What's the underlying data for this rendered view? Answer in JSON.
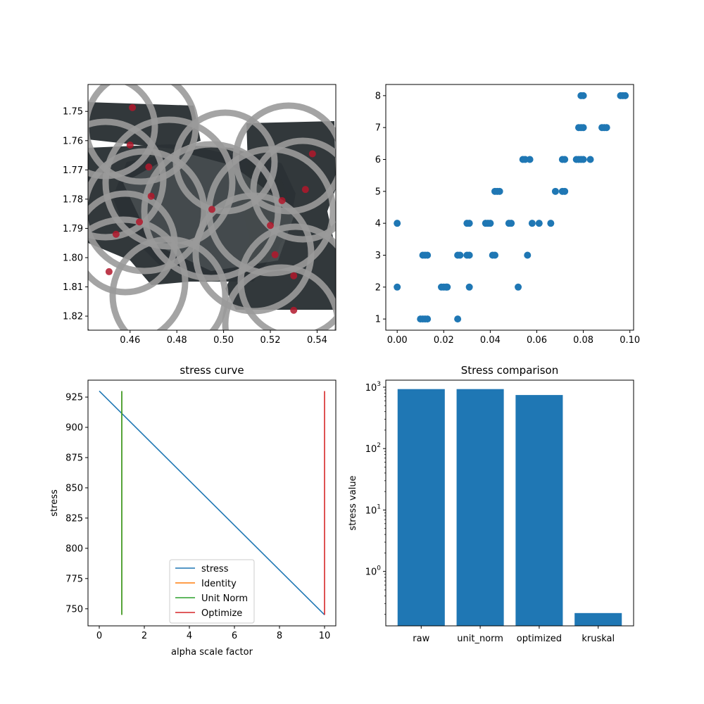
{
  "chart_data": [
    {
      "panel": "top-left",
      "type": "scatter",
      "title": "",
      "xlabel": "",
      "ylabel": "",
      "xlim": [
        0.442,
        0.548
      ],
      "ylim": [
        1.8248,
        1.7408
      ],
      "y_inverted": true,
      "xticks": [
        0.46,
        0.48,
        0.5,
        0.52,
        0.54
      ],
      "xtick_labels": [
        "0.46",
        "0.48",
        "0.50",
        "0.52",
        "0.54"
      ],
      "yticks": [
        1.75,
        1.76,
        1.77,
        1.78,
        1.79,
        1.8,
        1.81,
        1.82
      ],
      "ytick_labels": [
        "1.75",
        "1.76",
        "1.77",
        "1.78",
        "1.79",
        "1.80",
        "1.81",
        "1.82"
      ],
      "points": [
        {
          "x": 0.461,
          "y": 1.7487
        },
        {
          "x": 0.46,
          "y": 1.7615
        },
        {
          "x": 0.468,
          "y": 1.769
        },
        {
          "x": 0.469,
          "y": 1.779
        },
        {
          "x": 0.464,
          "y": 1.7878
        },
        {
          "x": 0.454,
          "y": 1.792
        },
        {
          "x": 0.451,
          "y": 1.8048
        },
        {
          "x": 0.538,
          "y": 1.7645
        },
        {
          "x": 0.535,
          "y": 1.7767
        },
        {
          "x": 0.525,
          "y": 1.7805
        },
        {
          "x": 0.52,
          "y": 1.789
        },
        {
          "x": 0.522,
          "y": 1.799
        },
        {
          "x": 0.53,
          "y": 1.8062
        },
        {
          "x": 0.53,
          "y": 1.818
        },
        {
          "x": 0.495,
          "y": 1.7835
        }
      ],
      "point_color": "#b2182b",
      "ring_color": "#9a9a9a",
      "blob_color": "#2b3235"
    },
    {
      "panel": "top-right",
      "type": "scatter",
      "title": "",
      "xlabel": "",
      "ylabel": "",
      "xlim": [
        -0.0049,
        0.1016
      ],
      "ylim": [
        0.65,
        8.35
      ],
      "xticks": [
        0.0,
        0.02,
        0.04,
        0.06,
        0.08,
        0.1
      ],
      "xtick_labels": [
        "0.00",
        "0.02",
        "0.04",
        "0.06",
        "0.08",
        "0.10"
      ],
      "yticks": [
        1,
        2,
        3,
        4,
        5,
        6,
        7,
        8
      ],
      "ytick_labels": [
        "1",
        "2",
        "3",
        "4",
        "5",
        "6",
        "7",
        "8"
      ],
      "point_color": "#1f77b4",
      "points": [
        {
          "x": 0.01,
          "y": 1
        },
        {
          "x": 0.011,
          "y": 1
        },
        {
          "x": 0.012,
          "y": 1
        },
        {
          "x": 0.013,
          "y": 1
        },
        {
          "x": 0.026,
          "y": 1
        },
        {
          "x": 0.0,
          "y": 2
        },
        {
          "x": 0.019,
          "y": 2
        },
        {
          "x": 0.02,
          "y": 2
        },
        {
          "x": 0.021,
          "y": 2
        },
        {
          "x": 0.0215,
          "y": 2
        },
        {
          "x": 0.031,
          "y": 2
        },
        {
          "x": 0.052,
          "y": 2
        },
        {
          "x": 0.011,
          "y": 3
        },
        {
          "x": 0.012,
          "y": 3
        },
        {
          "x": 0.013,
          "y": 3
        },
        {
          "x": 0.026,
          "y": 3
        },
        {
          "x": 0.027,
          "y": 3
        },
        {
          "x": 0.03,
          "y": 3
        },
        {
          "x": 0.031,
          "y": 3
        },
        {
          "x": 0.041,
          "y": 3
        },
        {
          "x": 0.042,
          "y": 3
        },
        {
          "x": 0.056,
          "y": 3
        },
        {
          "x": 0.0,
          "y": 4
        },
        {
          "x": 0.03,
          "y": 4
        },
        {
          "x": 0.031,
          "y": 4
        },
        {
          "x": 0.038,
          "y": 4
        },
        {
          "x": 0.039,
          "y": 4
        },
        {
          "x": 0.04,
          "y": 4
        },
        {
          "x": 0.048,
          "y": 4
        },
        {
          "x": 0.049,
          "y": 4
        },
        {
          "x": 0.058,
          "y": 4
        },
        {
          "x": 0.061,
          "y": 4
        },
        {
          "x": 0.066,
          "y": 4
        },
        {
          "x": 0.042,
          "y": 5
        },
        {
          "x": 0.043,
          "y": 5
        },
        {
          "x": 0.044,
          "y": 5
        },
        {
          "x": 0.068,
          "y": 5
        },
        {
          "x": 0.071,
          "y": 5
        },
        {
          "x": 0.072,
          "y": 5
        },
        {
          "x": 0.054,
          "y": 6
        },
        {
          "x": 0.055,
          "y": 6
        },
        {
          "x": 0.057,
          "y": 6
        },
        {
          "x": 0.071,
          "y": 6
        },
        {
          "x": 0.072,
          "y": 6
        },
        {
          "x": 0.077,
          "y": 6
        },
        {
          "x": 0.078,
          "y": 6
        },
        {
          "x": 0.079,
          "y": 6
        },
        {
          "x": 0.08,
          "y": 6
        },
        {
          "x": 0.083,
          "y": 6
        },
        {
          "x": 0.078,
          "y": 7
        },
        {
          "x": 0.079,
          "y": 7
        },
        {
          "x": 0.08,
          "y": 7
        },
        {
          "x": 0.088,
          "y": 7
        },
        {
          "x": 0.089,
          "y": 7
        },
        {
          "x": 0.09,
          "y": 7
        },
        {
          "x": 0.079,
          "y": 8
        },
        {
          "x": 0.08,
          "y": 8
        },
        {
          "x": 0.096,
          "y": 8
        },
        {
          "x": 0.097,
          "y": 8
        },
        {
          "x": 0.098,
          "y": 8
        }
      ]
    },
    {
      "panel": "bottom-left",
      "type": "line",
      "title": "stress curve",
      "xlabel": "alpha scale factor",
      "ylabel": "stress",
      "xlim": [
        -0.5,
        10.5
      ],
      "ylim": [
        735.9,
        939.0
      ],
      "xticks": [
        0,
        2,
        4,
        6,
        8,
        10
      ],
      "xtick_labels": [
        "0",
        "2",
        "4",
        "6",
        "8",
        "10"
      ],
      "yticks": [
        750,
        775,
        800,
        825,
        850,
        875,
        900,
        925
      ],
      "ytick_labels": [
        "750",
        "775",
        "800",
        "825",
        "850",
        "875",
        "900",
        "925"
      ],
      "legend_position": "lower center",
      "series": [
        {
          "name": "stress",
          "color": "#1f77b4",
          "x": [
            0,
            10
          ],
          "y": [
            930.0,
            745.0
          ]
        },
        {
          "name": "Identity",
          "color": "#ff7f0e",
          "x": [
            1,
            1
          ],
          "y": [
            745.0,
            930.0
          ]
        },
        {
          "name": "Unit Norm",
          "color": "#2ca02c",
          "x": [
            1,
            1
          ],
          "y": [
            745.0,
            930.0
          ]
        },
        {
          "name": "Optimize",
          "color": "#d62728",
          "x": [
            10,
            10
          ],
          "y": [
            745.0,
            930.0
          ]
        }
      ]
    },
    {
      "panel": "bottom-right",
      "type": "bar",
      "title": "Stress comparison",
      "xlabel": "",
      "ylabel": "stress value",
      "yscale": "log",
      "ylim": [
        0.13,
        1300
      ],
      "yticks": [
        1,
        10,
        100,
        1000
      ],
      "ytick_labels": [
        "10",
        "10",
        "10",
        "10"
      ],
      "ytick_exponents": [
        "0",
        "1",
        "2",
        "3"
      ],
      "categories": [
        "raw",
        "unit_norm",
        "optimized",
        "kruskal"
      ],
      "values": [
        930,
        930,
        745,
        0.21
      ],
      "bar_color": "#1f77b4"
    }
  ]
}
